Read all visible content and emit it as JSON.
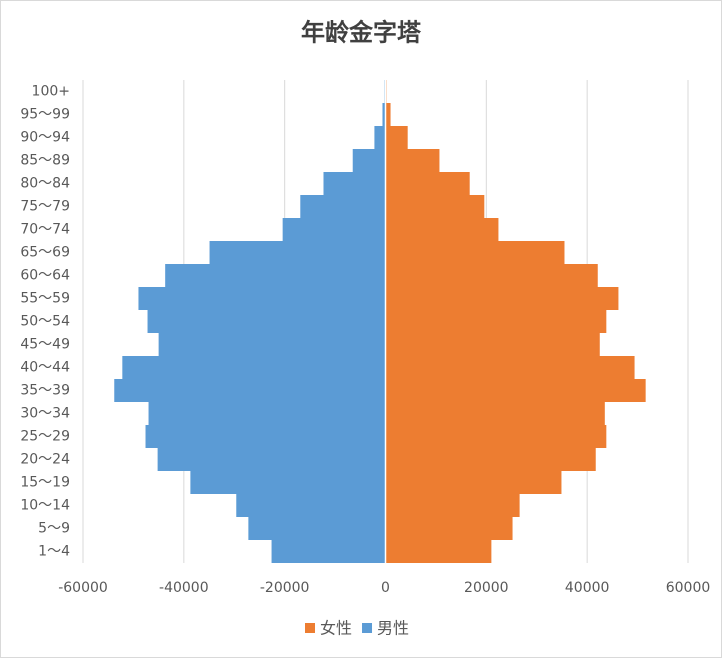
{
  "chart_data": {
    "type": "bar",
    "orientation": "horizontal",
    "stacked": true,
    "title": "年龄金字塔",
    "categories": [
      "1～4",
      "5～9",
      "10～14",
      "15～19",
      "20～24",
      "25～29",
      "30～34",
      "35～39",
      "40～44",
      "45～49",
      "50～54",
      "55～59",
      "60～64",
      "65～69",
      "70～74",
      "75～79",
      "80～84",
      "85～89",
      "90～94",
      "95～99",
      "100+"
    ],
    "series": [
      {
        "name": "女性",
        "color": "#ed7d31",
        "values": [
          21000,
          25200,
          26600,
          34900,
          41700,
          43800,
          43500,
          51600,
          49400,
          42500,
          43800,
          46200,
          42100,
          35500,
          22400,
          19600,
          16700,
          10700,
          4400,
          1000,
          200
        ]
      },
      {
        "name": "男性",
        "color": "#5b9bd5",
        "values": [
          -22600,
          -27200,
          -29600,
          -38700,
          -45200,
          -47600,
          -47000,
          -53800,
          -52200,
          -45000,
          -47200,
          -49000,
          -43700,
          -34900,
          -20400,
          -16900,
          -12300,
          -6500,
          -2200,
          -600,
          -200
        ]
      }
    ],
    "xlim": [
      -60000,
      60000
    ],
    "xticks": [
      -60000,
      -40000,
      -20000,
      0,
      20000,
      40000,
      60000
    ],
    "grid": true,
    "legend": "bottom"
  }
}
